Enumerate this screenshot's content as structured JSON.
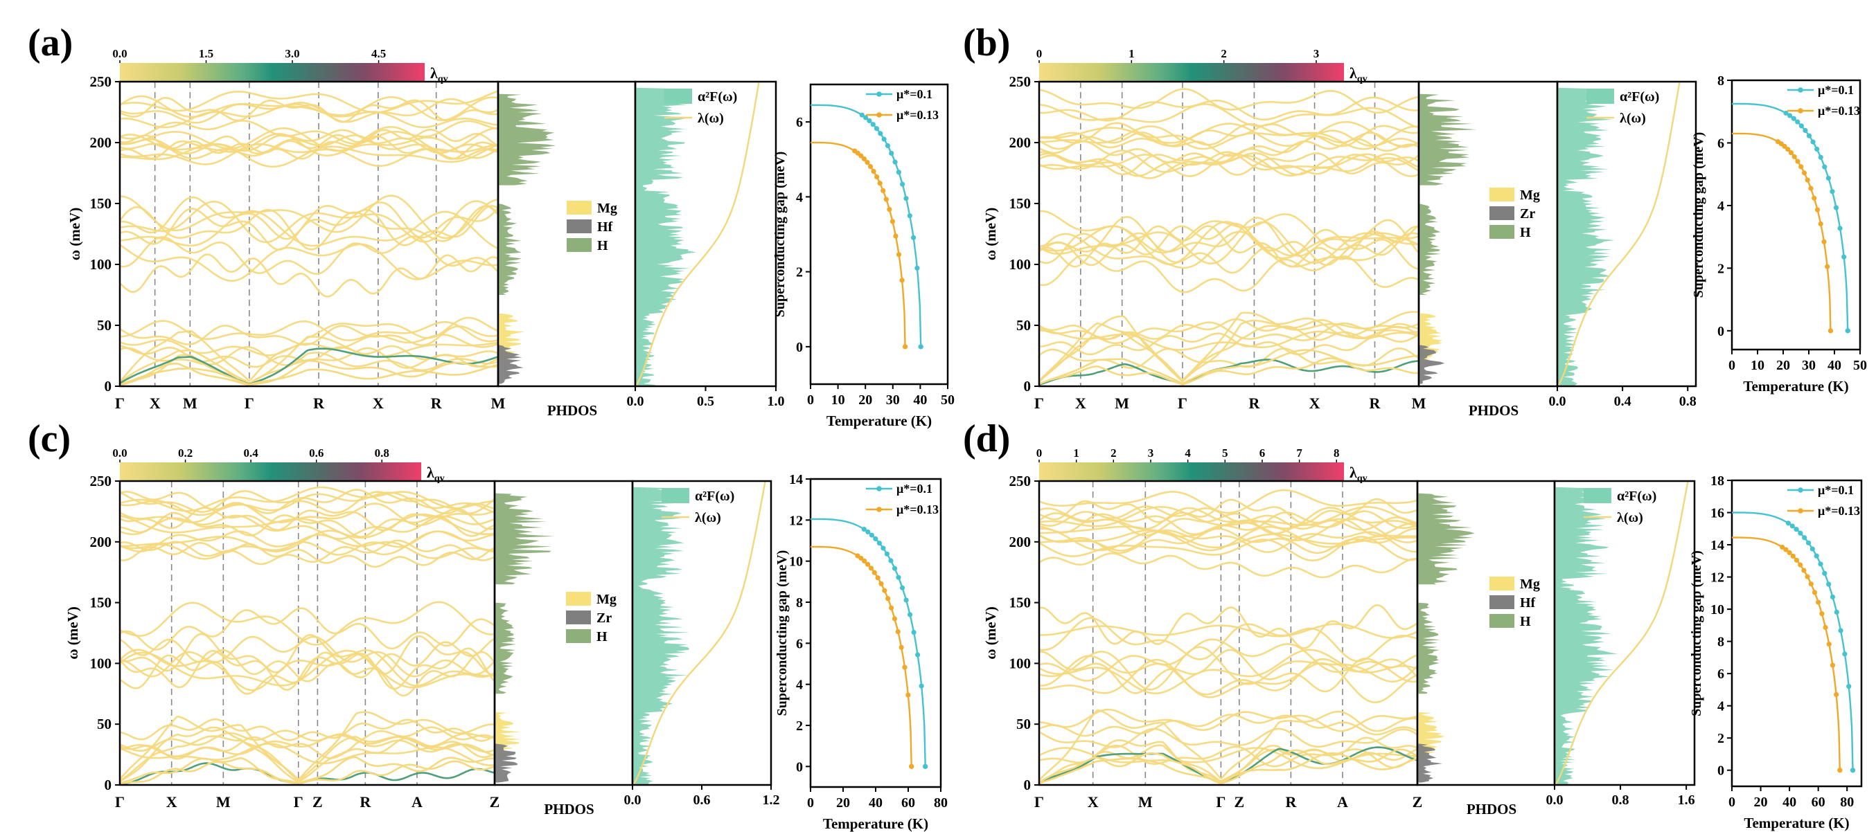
{
  "chart_data": [
    {
      "type": "band_structure_panel",
      "panel_label": "(a)",
      "colorbar": {
        "label": "λ",
        "label_sub": "qv",
        "ticks": [
          "0.0",
          "1.5",
          "3.0",
          "4.5"
        ],
        "tick_values": [
          0,
          1.5,
          3.0,
          4.5
        ],
        "max": 5.3
      },
      "bands": {
        "ylabel": "ω (meV)",
        "ylim": [
          0,
          250
        ],
        "yticks": [
          0,
          50,
          100,
          150,
          200,
          250
        ],
        "kpath": [
          "Γ",
          "X",
          "M",
          "Γ",
          "R",
          "X",
          "R",
          "M"
        ],
        "kpos": [
          0,
          0.0928,
          0.1856,
          0.3423,
          0.5258,
          0.6829,
          0.8364,
          1.0
        ]
      },
      "phdos": {
        "xlabel": "PHDOS",
        "legend": [
          "Mg",
          "Hf",
          "H"
        ]
      },
      "eliashberg": {
        "legend": [
          "α²F(ω)",
          "λ(ω)"
        ],
        "xlim": [
          0,
          1.0
        ],
        "xticks": [
          "0.0",
          "0.5",
          "1.0"
        ],
        "xtick_values": [
          0,
          0.5,
          1.0
        ],
        "lambda_max": 0.88
      },
      "gap": {
        "ylabel": "Superconducting gap (meV)",
        "xlabel": "Temperature (K)",
        "xlim": [
          0,
          50
        ],
        "xticks": [
          0,
          10,
          20,
          30,
          40,
          50
        ],
        "ylim": [
          -1,
          7
        ],
        "yticks": [
          0,
          2,
          4,
          6
        ],
        "series": [
          {
            "name": "μ*=0.1",
            "delta0": 6.45,
            "tc": 40.2
          },
          {
            "name": "μ*=0.13",
            "delta0": 5.45,
            "tc": 34.5
          }
        ]
      }
    },
    {
      "type": "band_structure_panel",
      "panel_label": "(b)",
      "colorbar": {
        "label": "λ",
        "label_sub": "qv",
        "ticks": [
          "0",
          "1",
          "2",
          "3"
        ],
        "tick_values": [
          0,
          1,
          2,
          3
        ],
        "max": 3.3
      },
      "bands": {
        "ylabel": "ω (meV)",
        "ylim": [
          0,
          250
        ],
        "yticks": [
          0,
          50,
          100,
          150,
          200,
          250
        ],
        "kpath": [
          "Γ",
          "X",
          "M",
          "Γ",
          "R",
          "X",
          "R",
          "M"
        ],
        "kpos": [
          0,
          0.1092,
          0.2184,
          0.3777,
          0.5665,
          0.7255,
          0.8841,
          1.0
        ]
      },
      "phdos": {
        "xlabel": "PHDOS",
        "legend": [
          "Mg",
          "Zr",
          "H"
        ]
      },
      "eliashberg": {
        "legend": [
          "α²F(ω)",
          "λ(ω)"
        ],
        "xlim": [
          0,
          0.85
        ],
        "xticks": [
          "0.0",
          "0.4",
          "0.8"
        ],
        "xtick_values": [
          0,
          0.4,
          0.8
        ],
        "lambda_max": 0.75
      },
      "gap": {
        "ylabel": "Superconducting gap (meV)",
        "xlabel": "Temperature (K)",
        "xlim": [
          0,
          50
        ],
        "xticks": [
          0,
          10,
          20,
          30,
          40,
          50
        ],
        "ylim": [
          -0.6,
          8
        ],
        "yticks": [
          0,
          2,
          4,
          6,
          8
        ],
        "series": [
          {
            "name": "μ*=0.1",
            "delta0": 7.25,
            "tc": 45.2
          },
          {
            "name": "μ*=0.13",
            "delta0": 6.3,
            "tc": 38.5
          }
        ]
      }
    },
    {
      "type": "band_structure_panel",
      "panel_label": "(c)",
      "colorbar": {
        "label": "λ",
        "label_sub": "qv",
        "ticks": [
          "0.0",
          "0.2",
          "0.4",
          "0.6",
          "0.8"
        ],
        "tick_values": [
          0,
          0.2,
          0.4,
          0.6,
          0.8
        ],
        "max": 0.92
      },
      "bands": {
        "ylabel": "ω (meV)",
        "ylim": [
          0,
          250
        ],
        "yticks": [
          0,
          50,
          100,
          150,
          200,
          250
        ],
        "kpath": [
          "Γ",
          "X",
          "M",
          "Γ",
          "Z",
          "R",
          "A",
          "Z"
        ],
        "kpos": [
          0,
          0.1381,
          0.276,
          0.4764,
          0.5275,
          0.655,
          0.7929,
          1.0
        ]
      },
      "phdos": {
        "xlabel": "PHDOS",
        "legend": [
          "Mg",
          "Zr",
          "H"
        ]
      },
      "eliashberg": {
        "legend": [
          "α²F(ω)",
          "λ(ω)"
        ],
        "xlim": [
          0,
          1.2
        ],
        "xticks": [
          "0.0",
          "0.6",
          "1.2"
        ],
        "xtick_values": [
          0,
          0.6,
          1.2
        ],
        "lambda_max": 1.15
      },
      "gap": {
        "ylabel": "Superconducting gap (meV)",
        "xlabel": "Temperature (K)",
        "xlim": [
          0,
          80
        ],
        "xticks": [
          0,
          20,
          40,
          60,
          80
        ],
        "ylim": [
          -1,
          14
        ],
        "yticks": [
          0,
          2,
          4,
          6,
          8,
          10,
          12,
          14
        ],
        "series": [
          {
            "name": "μ*=0.1",
            "delta0": 12.05,
            "tc": 70.5
          },
          {
            "name": "μ*=0.13",
            "delta0": 10.7,
            "tc": 62.0
          }
        ]
      }
    },
    {
      "type": "band_structure_panel",
      "panel_label": "(d)",
      "colorbar": {
        "label": "λ",
        "label_sub": "qv",
        "ticks": [
          "0",
          "1",
          "2",
          "3",
          "4",
          "5",
          "6",
          "7",
          "8"
        ],
        "tick_values": [
          0,
          1,
          2,
          3,
          4,
          5,
          6,
          7,
          8
        ],
        "max": 8.2
      },
      "bands": {
        "ylabel": "ω (meV)",
        "ylim": [
          0,
          250
        ],
        "yticks": [
          0,
          50,
          100,
          150,
          200,
          250
        ],
        "kpath": [
          "Γ",
          "X",
          "M",
          "Γ",
          "Z",
          "R",
          "A",
          "Z"
        ],
        "kpos": [
          0,
          0.1422,
          0.2808,
          0.4806,
          0.529,
          0.6656,
          0.8022,
          1.0
        ]
      },
      "phdos": {
        "xlabel": "PHDOS",
        "legend": [
          "Mg",
          "Hf",
          "H"
        ]
      },
      "eliashberg": {
        "legend": [
          "α²F(ω)",
          "λ(ω)"
        ],
        "xlim": [
          0,
          1.7
        ],
        "xticks": [
          "0.0",
          "0.8",
          "1.6"
        ],
        "xtick_values": [
          0,
          0.8,
          1.6
        ],
        "lambda_max": 1.62
      },
      "gap": {
        "ylabel": "Superconducting gap (meV)",
        "xlabel": "Temperature (K)",
        "xlim": [
          0,
          90
        ],
        "xticks": [
          0,
          20,
          40,
          60,
          80
        ],
        "ylim": [
          -1,
          18
        ],
        "yticks": [
          0,
          2,
          4,
          6,
          8,
          10,
          12,
          14,
          16,
          18
        ],
        "series": [
          {
            "name": "μ*=0.1",
            "delta0": 16.0,
            "tc": 84.0
          },
          {
            "name": "μ*=0.13",
            "delta0": 14.45,
            "tc": 75.0
          }
        ]
      }
    }
  ],
  "colors": {
    "band": "#f5d97e",
    "mg": "#f7e07a",
    "metal": "#7f7f7f",
    "h": "#8db07a",
    "a2f": "#7fd2b4",
    "lambda": "#f3d77c",
    "mu01": "#45c2cf",
    "mu013": "#f0a829",
    "grid": "#888888"
  }
}
